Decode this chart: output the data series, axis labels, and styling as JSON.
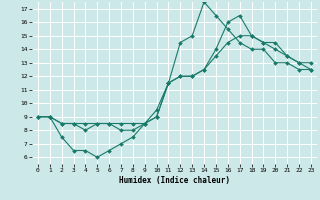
{
  "xlabel": "Humidex (Indice chaleur)",
  "bg_color": "#cce8e8",
  "grid_color": "#ffffff",
  "line_color": "#1a7a6a",
  "xlim": [
    -0.5,
    23.5
  ],
  "ylim": [
    5.5,
    17.5
  ],
  "xticks": [
    0,
    1,
    2,
    3,
    4,
    5,
    6,
    7,
    8,
    9,
    10,
    11,
    12,
    13,
    14,
    15,
    16,
    17,
    18,
    19,
    20,
    21,
    22,
    23
  ],
  "yticks": [
    6,
    7,
    8,
    9,
    10,
    11,
    12,
    13,
    14,
    15,
    16,
    17
  ],
  "line1_x": [
    0,
    1,
    2,
    3,
    4,
    5,
    6,
    7,
    8,
    9,
    10,
    11,
    12,
    13,
    14,
    15,
    16,
    17,
    18,
    19,
    20,
    21,
    22,
    23
  ],
  "line1_y": [
    9,
    9,
    7.5,
    6.5,
    6.5,
    6.0,
    6.5,
    7.0,
    7.5,
    8.5,
    9.0,
    11.5,
    14.5,
    15.0,
    17.5,
    16.5,
    15.5,
    14.5,
    14.0,
    14.0,
    13.0,
    13.0,
    12.5,
    12.5
  ],
  "line2_x": [
    0,
    1,
    2,
    3,
    4,
    5,
    6,
    7,
    8,
    9,
    10,
    11,
    12,
    13,
    14,
    15,
    16,
    17,
    18,
    19,
    20,
    21,
    22,
    23
  ],
  "line2_y": [
    9,
    9,
    8.5,
    8.5,
    8.5,
    8.5,
    8.5,
    8.5,
    8.5,
    8.5,
    9.5,
    11.5,
    12.0,
    12.0,
    12.5,
    13.5,
    14.5,
    15.0,
    15.0,
    14.5,
    14.0,
    13.5,
    13.0,
    13.0
  ],
  "line3_x": [
    0,
    1,
    2,
    3,
    4,
    5,
    6,
    7,
    8,
    9,
    10,
    11,
    12,
    13,
    14,
    15,
    16,
    17,
    18,
    19,
    20,
    21,
    22,
    23
  ],
  "line3_y": [
    9,
    9,
    8.5,
    8.5,
    8.0,
    8.5,
    8.5,
    8.0,
    8.0,
    8.5,
    9.0,
    11.5,
    12.0,
    12.0,
    12.5,
    14.0,
    16.0,
    16.5,
    15.0,
    14.5,
    14.5,
    13.5,
    13.0,
    12.5
  ]
}
